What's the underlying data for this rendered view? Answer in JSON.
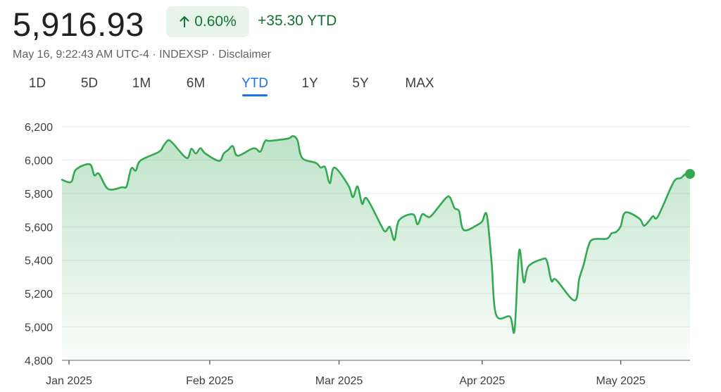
{
  "header": {
    "price": "5,916.93",
    "change_percent": "0.60%",
    "change_arrow_icon": "arrow-up-icon",
    "ytd_change": "+35.30 YTD",
    "meta": "May 16, 9:22:43 AM UTC-4 · INDEXSP · Disclaimer",
    "accent_color": "#137333",
    "badge_bg": "#e6f4ea"
  },
  "range_tabs": [
    {
      "label": "1D"
    },
    {
      "label": "5D"
    },
    {
      "label": "1M"
    },
    {
      "label": "6M"
    },
    {
      "label": "YTD",
      "active": true
    },
    {
      "label": "1Y"
    },
    {
      "label": "5Y"
    },
    {
      "label": "MAX"
    }
  ],
  "chart_data": {
    "type": "area",
    "title": "",
    "xlabel": "",
    "ylabel": "",
    "ylim": [
      4800,
      6200
    ],
    "yticks": [
      "6,200",
      "6,000",
      "5,800",
      "5,600",
      "5,400",
      "5,200",
      "5,000",
      "4,800"
    ],
    "ytick_values": [
      6200,
      6000,
      5800,
      5600,
      5400,
      5200,
      5000,
      4800
    ],
    "xticks": [
      {
        "label": "Jan 2025",
        "date": "2025-01-01"
      },
      {
        "label": "Feb 2025",
        "date": "2025-02-01"
      },
      {
        "label": "Mar 2025",
        "date": "2025-03-01"
      },
      {
        "label": "Apr 2025",
        "date": "2025-04-01"
      },
      {
        "label": "May 2025",
        "date": "2025-05-01"
      }
    ],
    "grid": "horizontal",
    "line_color": "#34a853",
    "series": [
      {
        "points": [
          [
            "2024-12-31",
            5882
          ],
          [
            "2025-01-02",
            5869
          ],
          [
            "2025-01-03",
            5942
          ],
          [
            "2025-01-06",
            5975
          ],
          [
            "2025-01-07",
            5909
          ],
          [
            "2025-01-08",
            5918
          ],
          [
            "2025-01-10",
            5827
          ],
          [
            "2025-01-13",
            5837
          ],
          [
            "2025-01-14",
            5843
          ],
          [
            "2025-01-15",
            5950
          ],
          [
            "2025-01-16",
            5937
          ],
          [
            "2025-01-17",
            5997
          ],
          [
            "2025-01-21",
            6049
          ],
          [
            "2025-01-22",
            6086
          ],
          [
            "2025-01-23",
            6119
          ],
          [
            "2025-01-24",
            6101
          ],
          [
            "2025-01-27",
            6012
          ],
          [
            "2025-01-28",
            6067
          ],
          [
            "2025-01-29",
            6039
          ],
          [
            "2025-01-30",
            6071
          ],
          [
            "2025-01-31",
            6040
          ],
          [
            "2025-02-03",
            5995
          ],
          [
            "2025-02-04",
            6038
          ],
          [
            "2025-02-05",
            6061
          ],
          [
            "2025-02-06",
            6083
          ],
          [
            "2025-02-07",
            6026
          ],
          [
            "2025-02-10",
            6066
          ],
          [
            "2025-02-11",
            6068
          ],
          [
            "2025-02-12",
            6051
          ],
          [
            "2025-02-13",
            6115
          ],
          [
            "2025-02-14",
            6115
          ],
          [
            "2025-02-18",
            6129
          ],
          [
            "2025-02-19",
            6144
          ],
          [
            "2025-02-20",
            6118
          ],
          [
            "2025-02-21",
            6013
          ],
          [
            "2025-02-24",
            5983
          ],
          [
            "2025-02-25",
            5955
          ],
          [
            "2025-02-26",
            5956
          ],
          [
            "2025-02-27",
            5861
          ],
          [
            "2025-02-28",
            5955
          ],
          [
            "2025-03-03",
            5849
          ],
          [
            "2025-03-04",
            5778
          ],
          [
            "2025-03-05",
            5842
          ],
          [
            "2025-03-06",
            5738
          ],
          [
            "2025-03-07",
            5770
          ],
          [
            "2025-03-10",
            5614
          ],
          [
            "2025-03-11",
            5572
          ],
          [
            "2025-03-12",
            5599
          ],
          [
            "2025-03-13",
            5521
          ],
          [
            "2025-03-14",
            5639
          ],
          [
            "2025-03-17",
            5675
          ],
          [
            "2025-03-18",
            5615
          ],
          [
            "2025-03-19",
            5675
          ],
          [
            "2025-03-20",
            5663
          ],
          [
            "2025-03-21",
            5667
          ],
          [
            "2025-03-24",
            5768
          ],
          [
            "2025-03-25",
            5777
          ],
          [
            "2025-03-26",
            5712
          ],
          [
            "2025-03-27",
            5693
          ],
          [
            "2025-03-28",
            5581
          ],
          [
            "2025-03-31",
            5612
          ],
          [
            "2025-04-01",
            5633
          ],
          [
            "2025-04-02",
            5671
          ],
          [
            "2025-04-03",
            5397
          ],
          [
            "2025-04-04",
            5074
          ],
          [
            "2025-04-07",
            5062
          ],
          [
            "2025-04-08",
            4982
          ],
          [
            "2025-04-09",
            5457
          ],
          [
            "2025-04-10",
            5268
          ],
          [
            "2025-04-11",
            5363
          ],
          [
            "2025-04-14",
            5406
          ],
          [
            "2025-04-15",
            5396
          ],
          [
            "2025-04-16",
            5276
          ],
          [
            "2025-04-17",
            5283
          ],
          [
            "2025-04-21",
            5158
          ],
          [
            "2025-04-22",
            5288
          ],
          [
            "2025-04-23",
            5376
          ],
          [
            "2025-04-24",
            5485
          ],
          [
            "2025-04-25",
            5525
          ],
          [
            "2025-04-28",
            5529
          ],
          [
            "2025-04-29",
            5561
          ],
          [
            "2025-04-30",
            5569
          ],
          [
            "2025-05-01",
            5604
          ],
          [
            "2025-05-02",
            5686
          ],
          [
            "2025-05-05",
            5650
          ],
          [
            "2025-05-06",
            5607
          ],
          [
            "2025-05-07",
            5631
          ],
          [
            "2025-05-08",
            5664
          ],
          [
            "2025-05-09",
            5660
          ],
          [
            "2025-05-12",
            5844
          ],
          [
            "2025-05-13",
            5886
          ],
          [
            "2025-05-14",
            5892
          ],
          [
            "2025-05-15",
            5916
          ],
          [
            "2025-05-16",
            5917
          ]
        ]
      }
    ]
  }
}
